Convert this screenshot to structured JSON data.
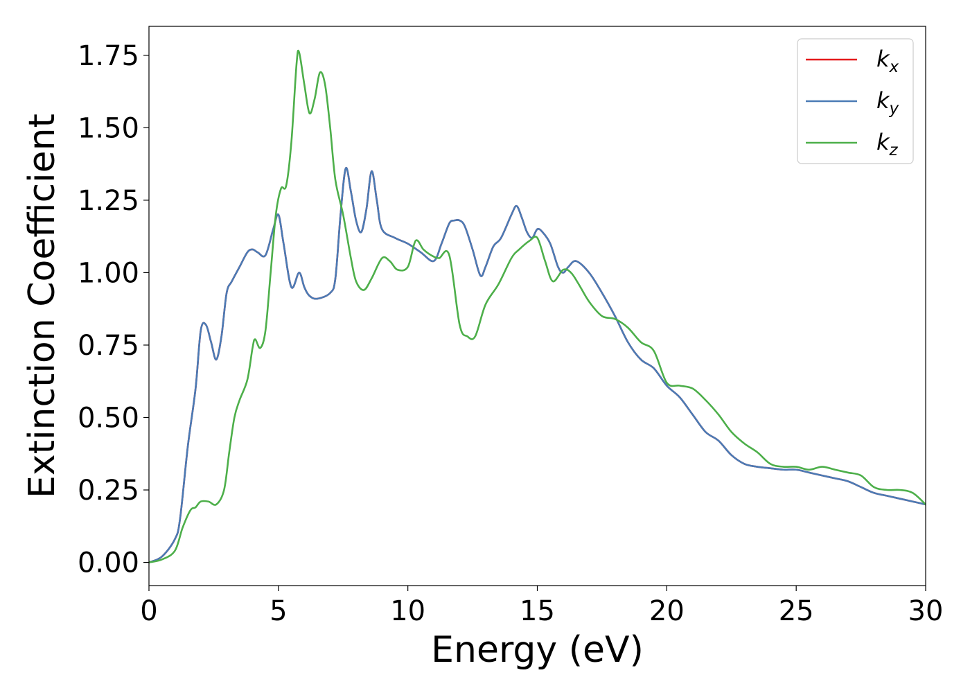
{
  "chart_data": {
    "type": "line",
    "title": "",
    "xlabel": "Energy (eV)",
    "ylabel": "Extinction Coefficient",
    "xlim": [
      0,
      30
    ],
    "ylim": [
      -0.08,
      1.85
    ],
    "xticks": [
      0,
      5,
      10,
      15,
      20,
      25,
      30
    ],
    "xtick_labels": [
      "0",
      "5",
      "10",
      "15",
      "20",
      "25",
      "30"
    ],
    "yticks": [
      0,
      0.25,
      0.5,
      0.75,
      1.0,
      1.25,
      1.5,
      1.75
    ],
    "ytick_labels": [
      "0.00",
      "0.25",
      "0.50",
      "0.75",
      "1.00",
      "1.25",
      "1.50",
      "1.75"
    ],
    "grid": false,
    "legend_position": "top-right",
    "series": [
      {
        "name": "k_x",
        "legend_base": "k",
        "legend_sub": "x",
        "color": "#e41a1c",
        "x": [
          0,
          0.5,
          1.0,
          1.2,
          1.5,
          1.8,
          2.0,
          2.2,
          2.4,
          2.6,
          2.8,
          3.0,
          3.2,
          3.5,
          3.8,
          4.0,
          4.2,
          4.5,
          4.8,
          5.0,
          5.2,
          5.5,
          5.8,
          6.0,
          6.2,
          6.5,
          7.0,
          7.2,
          7.4,
          7.6,
          7.8,
          8.0,
          8.2,
          8.4,
          8.6,
          8.8,
          9.0,
          9.5,
          10.0,
          10.5,
          11.0,
          11.3,
          11.6,
          11.8,
          12.0,
          12.2,
          12.5,
          12.8,
          13.0,
          13.3,
          13.6,
          14.0,
          14.2,
          14.4,
          14.6,
          14.8,
          15.0,
          15.2,
          15.5,
          15.8,
          16.0,
          16.2,
          16.5,
          17.0,
          17.5,
          18.0,
          18.5,
          19.0,
          19.5,
          20.0,
          20.5,
          21.0,
          21.5,
          22.0,
          22.5,
          23.0,
          23.5,
          24.0,
          24.5,
          25.0,
          25.5,
          26.0,
          26.5,
          27.0,
          27.5,
          28.0,
          28.5,
          29.0,
          29.5,
          30.0
        ],
        "y": [
          0.0,
          0.02,
          0.08,
          0.15,
          0.4,
          0.6,
          0.8,
          0.82,
          0.76,
          0.7,
          0.78,
          0.93,
          0.97,
          1.02,
          1.07,
          1.08,
          1.07,
          1.06,
          1.15,
          1.2,
          1.1,
          0.95,
          1.0,
          0.95,
          0.92,
          0.91,
          0.93,
          0.98,
          1.2,
          1.36,
          1.28,
          1.18,
          1.14,
          1.22,
          1.35,
          1.25,
          1.15,
          1.12,
          1.1,
          1.07,
          1.04,
          1.1,
          1.17,
          1.18,
          1.18,
          1.16,
          1.08,
          0.99,
          1.02,
          1.09,
          1.12,
          1.2,
          1.23,
          1.19,
          1.14,
          1.12,
          1.15,
          1.14,
          1.1,
          1.02,
          1.0,
          1.02,
          1.04,
          1.0,
          0.93,
          0.85,
          0.76,
          0.7,
          0.67,
          0.61,
          0.57,
          0.51,
          0.45,
          0.42,
          0.37,
          0.34,
          0.33,
          0.325,
          0.32,
          0.32,
          0.31,
          0.3,
          0.29,
          0.28,
          0.26,
          0.24,
          0.23,
          0.22,
          0.21,
          0.2
        ]
      },
      {
        "name": "k_y",
        "legend_base": "k",
        "legend_sub": "y",
        "color": "#4a7bb5",
        "x": [
          0,
          0.5,
          1.0,
          1.2,
          1.5,
          1.8,
          2.0,
          2.2,
          2.4,
          2.6,
          2.8,
          3.0,
          3.2,
          3.5,
          3.8,
          4.0,
          4.2,
          4.5,
          4.8,
          5.0,
          5.2,
          5.5,
          5.8,
          6.0,
          6.2,
          6.5,
          7.0,
          7.2,
          7.4,
          7.6,
          7.8,
          8.0,
          8.2,
          8.4,
          8.6,
          8.8,
          9.0,
          9.5,
          10.0,
          10.5,
          11.0,
          11.3,
          11.6,
          11.8,
          12.0,
          12.2,
          12.5,
          12.8,
          13.0,
          13.3,
          13.6,
          14.0,
          14.2,
          14.4,
          14.6,
          14.8,
          15.0,
          15.2,
          15.5,
          15.8,
          16.0,
          16.2,
          16.5,
          17.0,
          17.5,
          18.0,
          18.5,
          19.0,
          19.5,
          20.0,
          20.5,
          21.0,
          21.5,
          22.0,
          22.5,
          23.0,
          23.5,
          24.0,
          24.5,
          25.0,
          25.5,
          26.0,
          26.5,
          27.0,
          27.5,
          28.0,
          28.5,
          29.0,
          29.5,
          30.0
        ],
        "y": [
          0.0,
          0.02,
          0.08,
          0.15,
          0.4,
          0.6,
          0.8,
          0.82,
          0.76,
          0.7,
          0.78,
          0.93,
          0.97,
          1.02,
          1.07,
          1.08,
          1.07,
          1.06,
          1.15,
          1.2,
          1.1,
          0.95,
          1.0,
          0.95,
          0.92,
          0.91,
          0.93,
          0.98,
          1.2,
          1.36,
          1.28,
          1.18,
          1.14,
          1.22,
          1.35,
          1.25,
          1.15,
          1.12,
          1.1,
          1.07,
          1.04,
          1.1,
          1.17,
          1.18,
          1.18,
          1.16,
          1.08,
          0.99,
          1.02,
          1.09,
          1.12,
          1.2,
          1.23,
          1.19,
          1.14,
          1.12,
          1.15,
          1.14,
          1.1,
          1.02,
          1.0,
          1.02,
          1.04,
          1.0,
          0.93,
          0.85,
          0.76,
          0.7,
          0.67,
          0.61,
          0.57,
          0.51,
          0.45,
          0.42,
          0.37,
          0.34,
          0.33,
          0.325,
          0.32,
          0.32,
          0.31,
          0.3,
          0.29,
          0.28,
          0.26,
          0.24,
          0.23,
          0.22,
          0.21,
          0.2
        ]
      },
      {
        "name": "k_z",
        "legend_base": "k",
        "legend_sub": "z",
        "color": "#4daf4a",
        "x": [
          0,
          0.5,
          1.0,
          1.3,
          1.6,
          1.8,
          2.0,
          2.3,
          2.6,
          2.9,
          3.1,
          3.3,
          3.5,
          3.8,
          4.0,
          4.1,
          4.3,
          4.5,
          4.7,
          4.9,
          5.1,
          5.3,
          5.5,
          5.7,
          5.8,
          6.0,
          6.2,
          6.4,
          6.6,
          6.8,
          7.0,
          7.2,
          7.5,
          7.8,
          8.0,
          8.3,
          8.6,
          9.0,
          9.3,
          9.6,
          10.0,
          10.3,
          10.6,
          10.9,
          11.2,
          11.6,
          12.0,
          12.3,
          12.6,
          13.0,
          13.5,
          14.0,
          14.3,
          14.7,
          15.0,
          15.3,
          15.6,
          16.0,
          16.3,
          16.6,
          17.0,
          17.5,
          18.0,
          18.5,
          19.0,
          19.5,
          20.0,
          20.5,
          21.0,
          21.5,
          22.0,
          22.5,
          23.0,
          23.5,
          24.0,
          24.5,
          25.0,
          25.5,
          26.0,
          26.5,
          27.0,
          27.5,
          28.0,
          28.5,
          29.0,
          29.5,
          30.0
        ],
        "y": [
          0.0,
          0.01,
          0.04,
          0.12,
          0.18,
          0.19,
          0.21,
          0.21,
          0.2,
          0.25,
          0.38,
          0.5,
          0.56,
          0.63,
          0.74,
          0.77,
          0.74,
          0.8,
          1.0,
          1.2,
          1.29,
          1.3,
          1.45,
          1.72,
          1.76,
          1.65,
          1.55,
          1.6,
          1.69,
          1.65,
          1.5,
          1.32,
          1.2,
          1.05,
          0.97,
          0.94,
          0.98,
          1.05,
          1.04,
          1.01,
          1.02,
          1.11,
          1.08,
          1.06,
          1.05,
          1.06,
          0.82,
          0.78,
          0.78,
          0.89,
          0.96,
          1.05,
          1.08,
          1.11,
          1.12,
          1.04,
          0.97,
          1.01,
          1.0,
          0.96,
          0.9,
          0.85,
          0.84,
          0.81,
          0.76,
          0.73,
          0.62,
          0.61,
          0.6,
          0.56,
          0.51,
          0.45,
          0.41,
          0.38,
          0.34,
          0.33,
          0.33,
          0.32,
          0.33,
          0.32,
          0.31,
          0.3,
          0.26,
          0.25,
          0.25,
          0.24,
          0.2
        ]
      }
    ]
  }
}
